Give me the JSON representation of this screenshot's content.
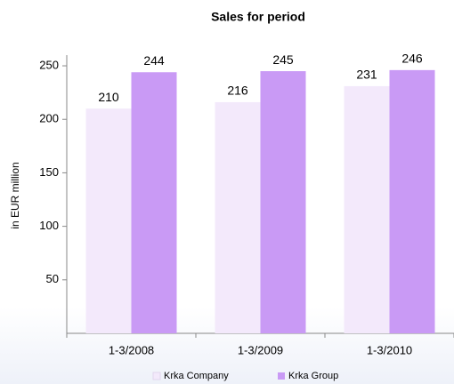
{
  "chart_data": {
    "type": "bar",
    "title": "Sales for period",
    "y_label": "in EUR million",
    "categories": [
      "1-3/2008",
      "1-3/2009",
      "1-3/2010"
    ],
    "series": [
      {
        "name": "Krka Company",
        "color": "#f3e9fb",
        "values": [
          210,
          216,
          231
        ]
      },
      {
        "name": "Krka Group",
        "color": "#c99af5",
        "values": [
          244,
          245,
          246
        ]
      }
    ],
    "ylim": [
      0,
      260
    ],
    "yticks": [
      50,
      100,
      150,
      200,
      250
    ],
    "grid": false,
    "legend": "bottom"
  }
}
